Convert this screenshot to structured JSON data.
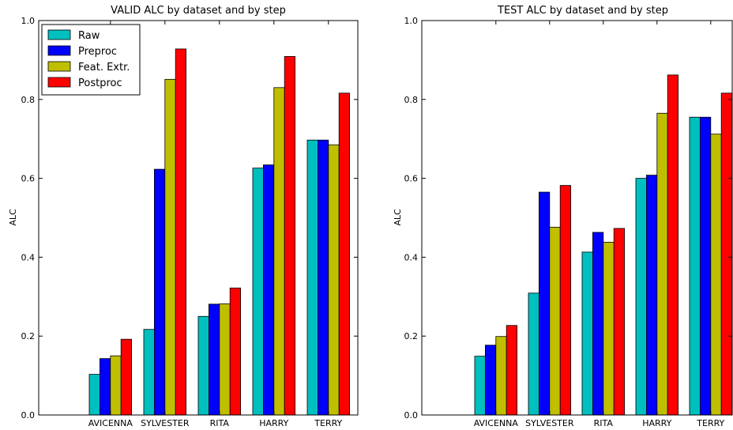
{
  "chart_data": [
    {
      "type": "bar",
      "title": "VALID ALC by dataset and by step",
      "xlabel": "",
      "ylabel": "ALC",
      "ylim": [
        0,
        1.0
      ],
      "yticks": [
        "0.0",
        "0.2",
        "0.4",
        "0.6",
        "0.8",
        "1.0"
      ],
      "categories": [
        "AVICENNA",
        "SYLVESTER",
        "RITA",
        "HARRY",
        "TERRY"
      ],
      "series": [
        {
          "name": "Raw",
          "color": "#00bfbf",
          "values": [
            0.103,
            0.217,
            0.25,
            0.626,
            0.697
          ]
        },
        {
          "name": "Preproc",
          "color": "#0000ff",
          "values": [
            0.143,
            0.623,
            0.281,
            0.634,
            0.697
          ]
        },
        {
          "name": "Feat. Extr.",
          "color": "#bfbf00",
          "values": [
            0.15,
            0.851,
            0.282,
            0.83,
            0.685
          ]
        },
        {
          "name": "Postproc",
          "color": "#ff0000",
          "values": [
            0.192,
            0.928,
            0.322,
            0.909,
            0.816
          ]
        }
      ],
      "legend": {
        "placement": "top-left",
        "entries": [
          "Raw",
          "Preproc",
          "Feat. Extr.",
          "Postproc"
        ]
      },
      "grid": false
    },
    {
      "type": "bar",
      "title": "TEST ALC by dataset and by step",
      "xlabel": "",
      "ylabel": "ALC",
      "ylim": [
        0,
        1.0
      ],
      "yticks": [
        "0.0",
        "0.2",
        "0.4",
        "0.6",
        "0.8",
        "1.0"
      ],
      "categories": [
        "AVICENNA",
        "SYLVESTER",
        "RITA",
        "HARRY",
        "TERRY"
      ],
      "series": [
        {
          "name": "Raw",
          "color": "#00bfbf",
          "values": [
            0.149,
            0.309,
            0.413,
            0.6,
            0.755
          ]
        },
        {
          "name": "Preproc",
          "color": "#0000ff",
          "values": [
            0.177,
            0.565,
            0.463,
            0.608,
            0.755
          ]
        },
        {
          "name": "Feat. Extr.",
          "color": "#bfbf00",
          "values": [
            0.199,
            0.476,
            0.438,
            0.765,
            0.712
          ]
        },
        {
          "name": "Postproc",
          "color": "#ff0000",
          "values": [
            0.227,
            0.582,
            0.473,
            0.862,
            0.816
          ]
        }
      ],
      "grid": false
    }
  ]
}
